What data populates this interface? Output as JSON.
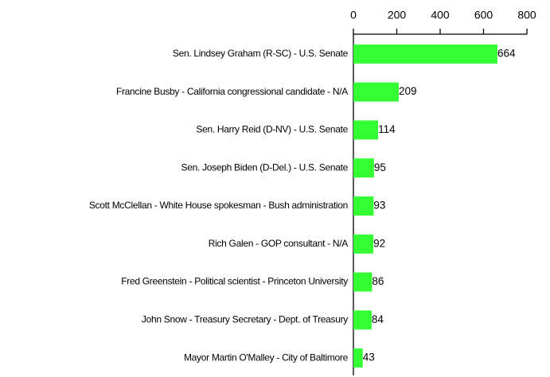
{
  "chart_data": {
    "type": "bar",
    "orientation": "horizontal",
    "categories": [
      "Sen. Lindsey Graham (R-SC) - U.S. Senate",
      "Francine Busby - California congressional candidate - N/A",
      "Sen. Harry Reid (D-NV) - U.S. Senate",
      "Sen. Joseph Biden (D-Del.) - U.S. Senate",
      "Scott McClellan - White House spokesman - Bush administration",
      "Rich Galen - GOP consultant - N/A",
      "Fred Greenstein - Political scientist - Princeton University",
      "John Snow - Treasury Secretary - Dept. of Treasury",
      "Mayor Martin O'Malley - City of Baltimore"
    ],
    "values": [
      664,
      209,
      114,
      95,
      93,
      92,
      86,
      84,
      43
    ],
    "color": "#33ff33",
    "xlim": [
      0,
      800
    ],
    "xticks": [
      0,
      200,
      400,
      600,
      800
    ],
    "grid": false
  }
}
